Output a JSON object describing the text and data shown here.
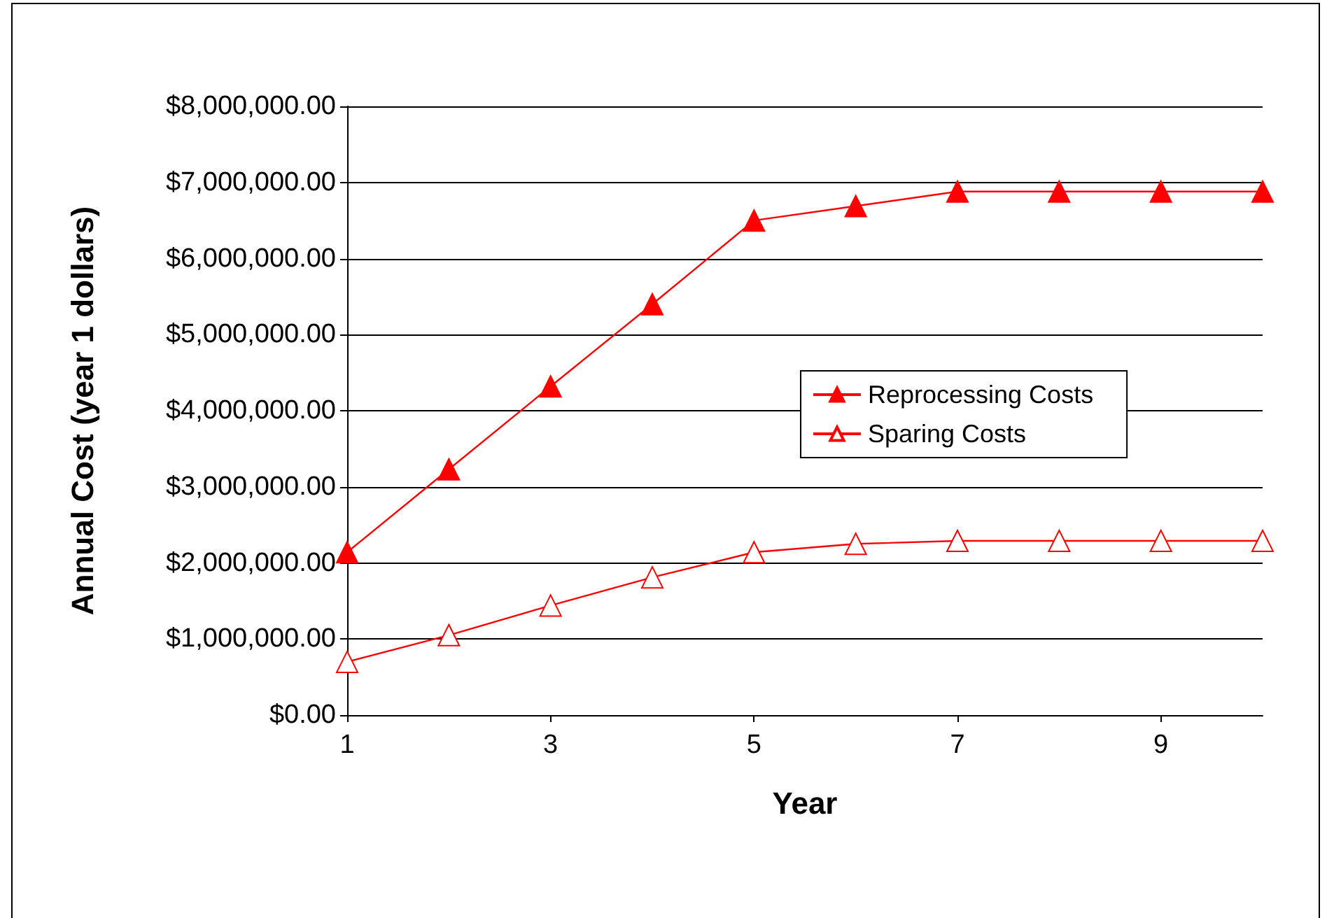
{
  "chart_data": {
    "type": "line",
    "xlabel": "Year",
    "ylabel": "Annual Cost (year 1 dollars)",
    "x": [
      1,
      2,
      3,
      4,
      5,
      6,
      7,
      8,
      9,
      10
    ],
    "series": [
      {
        "name": "Reprocessing Costs",
        "color": "#ff0000",
        "values": [
          2140000,
          3230000,
          4320000,
          5400000,
          6500000,
          6690000,
          6880000,
          6880000,
          6880000,
          6880000
        ]
      },
      {
        "name": "Sparing Costs",
        "color": "#ff0000",
        "values": [
          700000,
          1050000,
          1440000,
          1810000,
          2140000,
          2250000,
          2290000,
          2290000,
          2290000,
          2290000
        ]
      }
    ],
    "xlim": [
      1,
      10
    ],
    "xticks": [
      1,
      3,
      5,
      7,
      9
    ],
    "ylim": [
      0,
      8000000
    ],
    "yticks": [
      {
        "value": 0,
        "label": "$0.00"
      },
      {
        "value": 1000000,
        "label": "$1,000,000.00"
      },
      {
        "value": 2000000,
        "label": "$2,000,000.00"
      },
      {
        "value": 3000000,
        "label": "$3,000,000.00"
      },
      {
        "value": 4000000,
        "label": "$4,000,000.00"
      },
      {
        "value": 5000000,
        "label": "$5,000,000.00"
      },
      {
        "value": 6000000,
        "label": "$6,000,000.00"
      },
      {
        "value": 7000000,
        "label": "$7,000,000.00"
      },
      {
        "value": 8000000,
        "label": "$8,000,000.00"
      }
    ],
    "grid": "y",
    "legend": "right",
    "marker": "triangle",
    "line_style": "solid"
  }
}
